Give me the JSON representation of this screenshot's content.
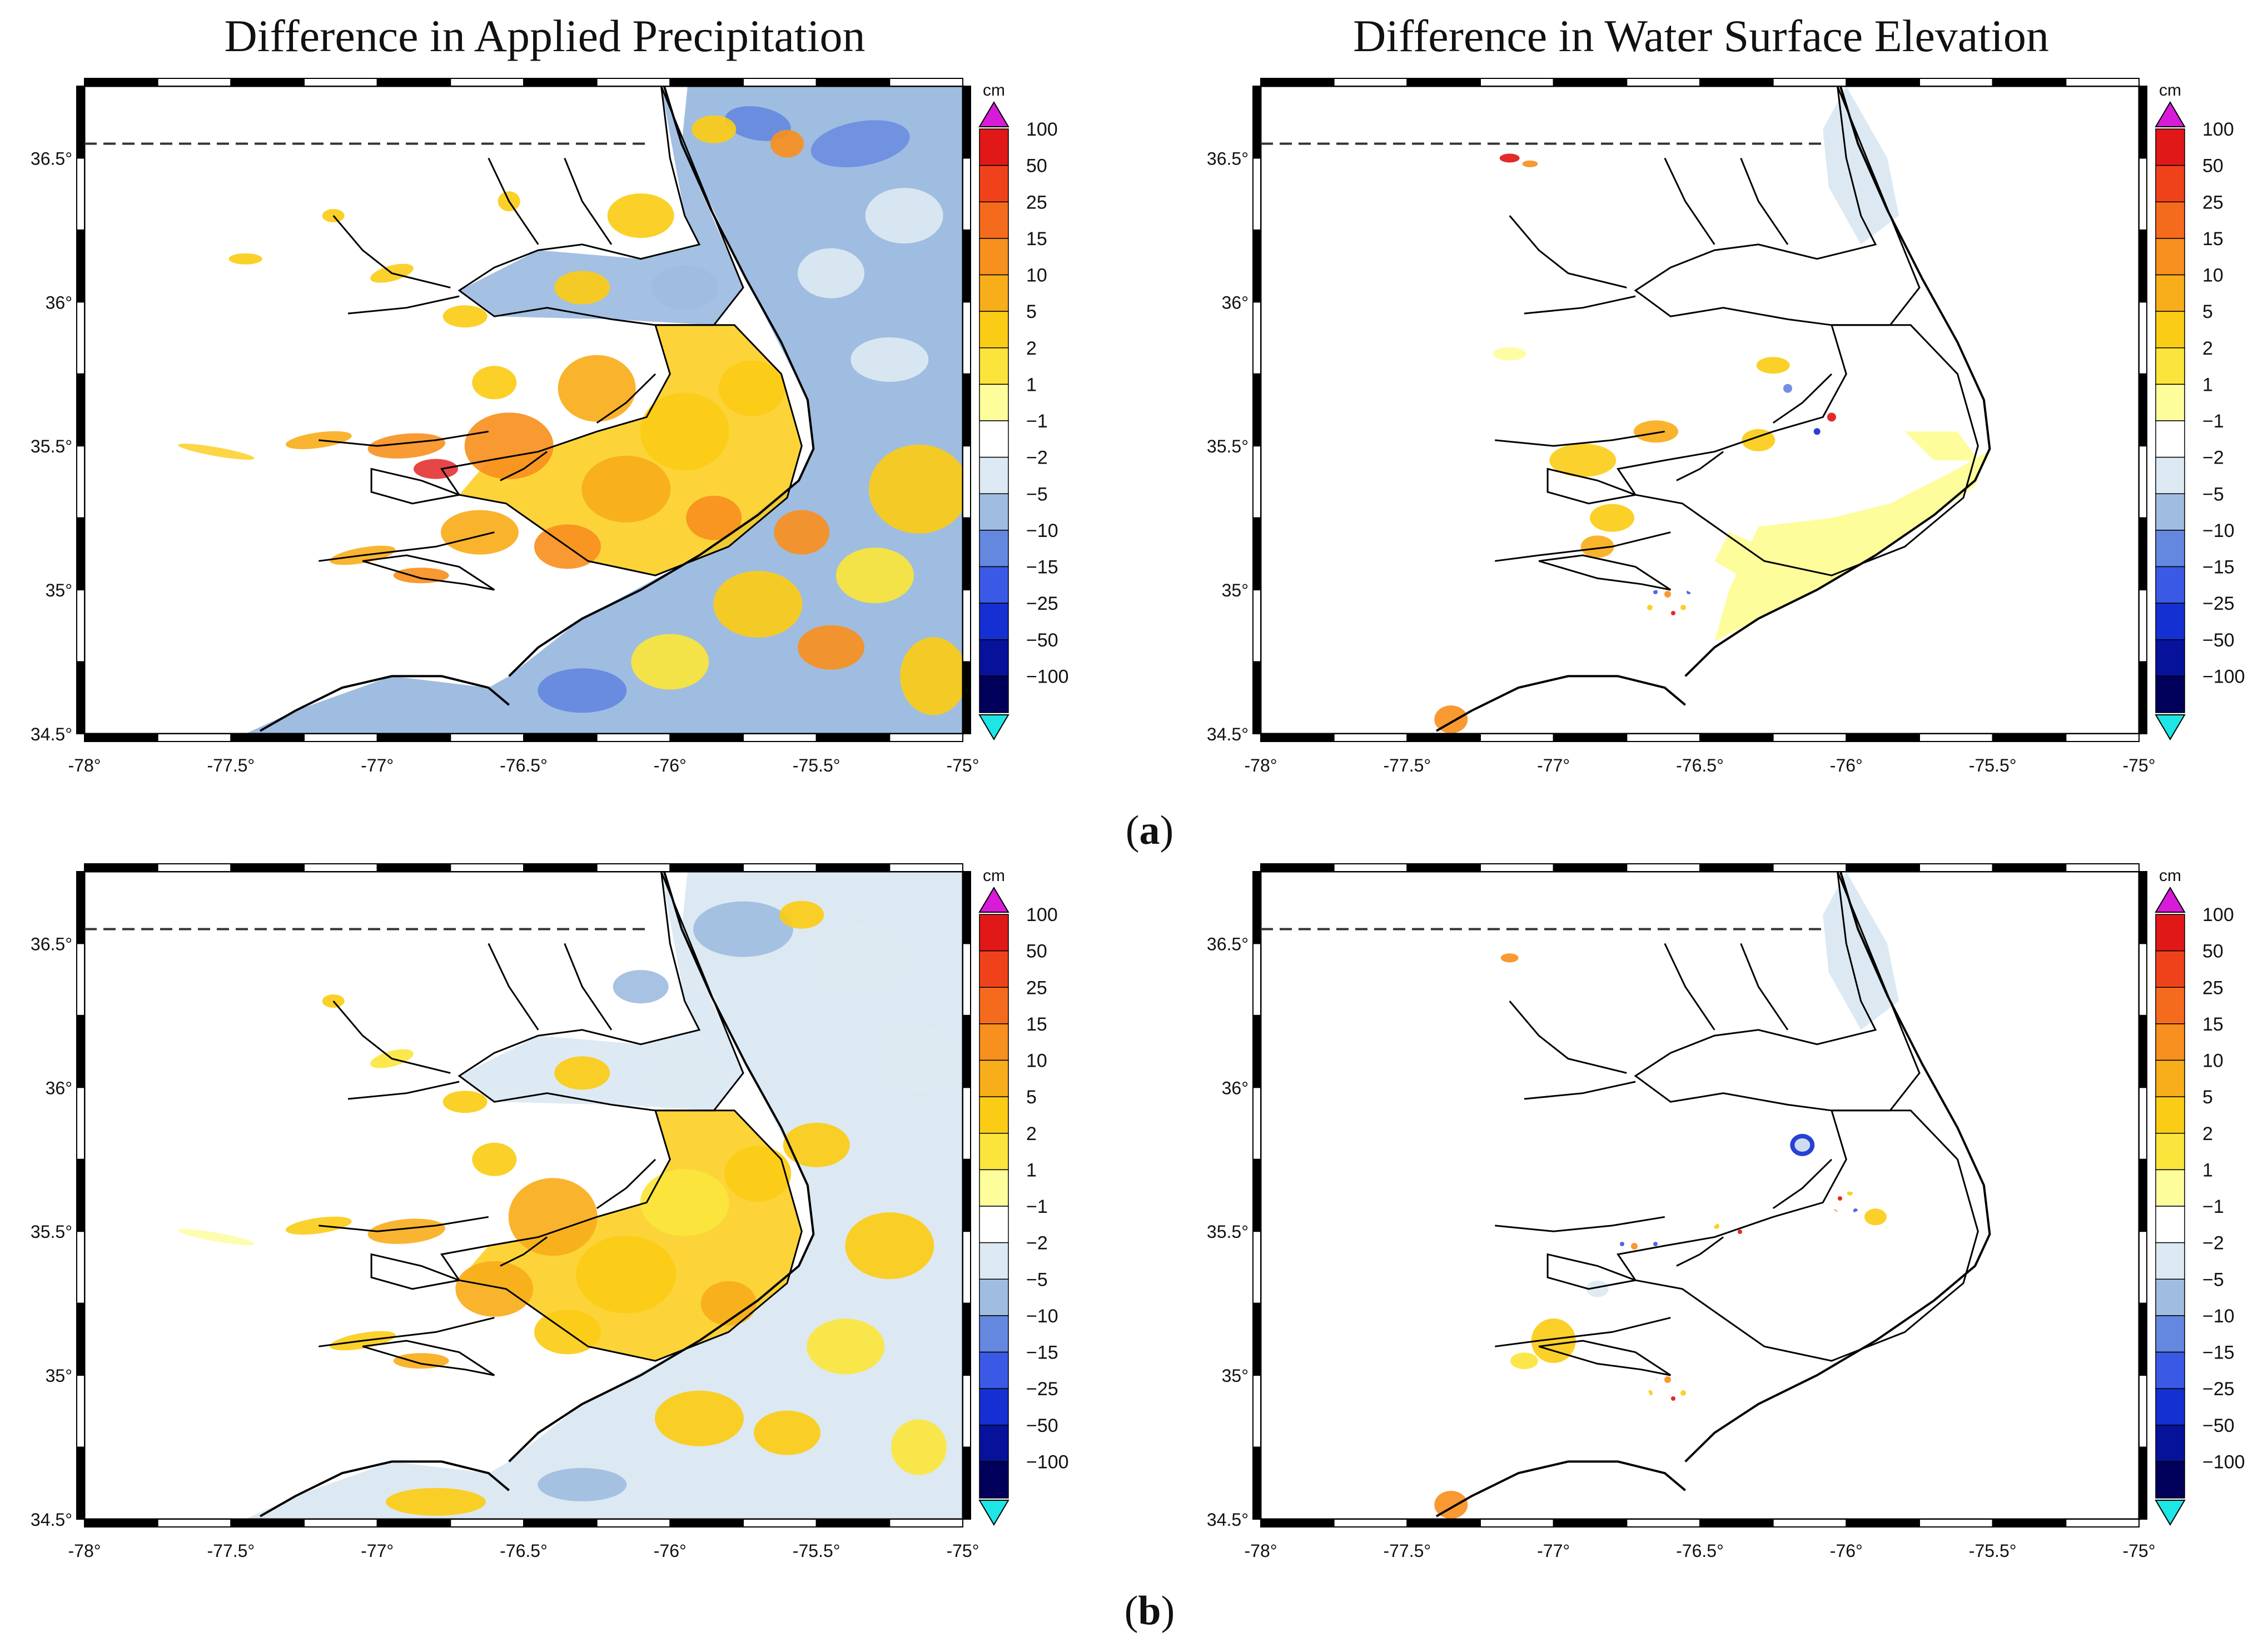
{
  "titles": {
    "left": "Difference in Applied Precipitation",
    "right": "Difference in Water Surface Elevation"
  },
  "rows": [
    {
      "label_open": "(",
      "label_letter": "a",
      "label_close": ")"
    },
    {
      "label_open": "(",
      "label_letter": "b",
      "label_close": ")"
    }
  ],
  "axes": {
    "x_ticks": [
      "-78°",
      "-77.5°",
      "-77°",
      "-76.5°",
      "-76°",
      "-75.5°",
      "-75°"
    ],
    "y_ticks": [
      "36.5°",
      "36°",
      "35.5°",
      "35°",
      "34.5°"
    ],
    "lon_range": [
      -78,
      -75
    ],
    "lat_range": [
      34.5,
      36.75
    ]
  },
  "colorbar": {
    "unit": "cm",
    "labels": [
      "100",
      "50",
      "25",
      "15",
      "10",
      "5",
      "2",
      "1",
      "−1",
      "−2",
      "−5",
      "−10",
      "−15",
      "−25",
      "−50",
      "−100"
    ],
    "colors": [
      "#e01818",
      "#f0421a",
      "#f56b1e",
      "#f7901f",
      "#f8ad1b",
      "#fbcc16",
      "#fbe53c",
      "#fdfd9c",
      "#ffffff",
      "#dce9f2",
      "#9fbde0",
      "#6487e0",
      "#3a5ae6",
      "#1430d2",
      "#06129a",
      "#00005a"
    ],
    "over_color": "#d81bd8",
    "under_color": "#1ee6e6"
  },
  "dashed_line_lat": 36.55,
  "chart_data": [
    {
      "type": "heatmap",
      "panel": "a-left",
      "field": "Difference in Applied Precipitation",
      "unit": "cm",
      "lon": [
        -78,
        -75
      ],
      "lat": [
        34.5,
        36.75
      ]
    },
    {
      "type": "heatmap",
      "panel": "a-right",
      "field": "Difference in Water Surface Elevation",
      "unit": "cm",
      "lon": [
        -78,
        -75
      ],
      "lat": [
        34.5,
        36.75
      ]
    },
    {
      "type": "heatmap",
      "panel": "b-left",
      "field": "Difference in Applied Precipitation",
      "unit": "cm",
      "lon": [
        -78,
        -75
      ],
      "lat": [
        34.5,
        36.75
      ]
    },
    {
      "type": "heatmap",
      "panel": "b-right",
      "field": "Difference in Water Surface Elevation",
      "unit": "cm",
      "lon": [
        -78,
        -75
      ],
      "lat": [
        34.5,
        36.75
      ]
    }
  ]
}
